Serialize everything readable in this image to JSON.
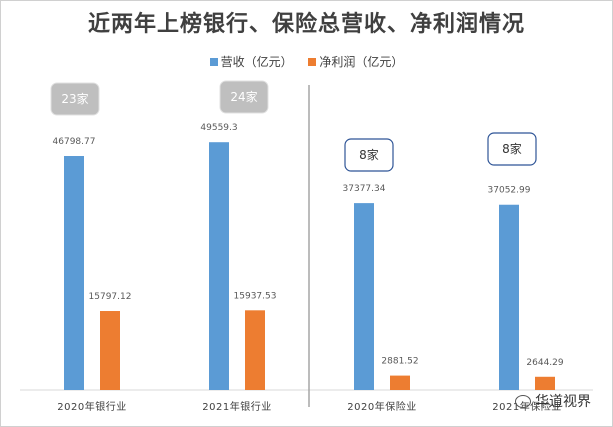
{
  "chart_data": {
    "type": "bar",
    "title": "近两年上榜银行、保险总营收、净利润情况",
    "categories": [
      "2020年银行业",
      "2021年银行业",
      "2020年保险业",
      "2021年保险业"
    ],
    "series": [
      {
        "name": "营收（亿元）",
        "color": "#5b9bd5",
        "values": [
          46798.77,
          49559.3,
          37377.34,
          37052.99
        ]
      },
      {
        "name": "净利润（亿元）",
        "color": "#ed7d31",
        "values": [
          15797.12,
          15937.53,
          2881.52,
          2644.29
        ]
      }
    ],
    "value_labels": [
      [
        "46798.77",
        "49559.3",
        "37377.34",
        "37052.99"
      ],
      [
        "15797.12",
        "15937.53",
        "2881.52",
        "2644.29"
      ]
    ],
    "annotations": [
      "23家",
      "24家",
      "8家",
      "8家"
    ],
    "ylim": [
      0,
      56000
    ],
    "legend_position": "top-center",
    "grid": false
  },
  "watermark": "华道视界"
}
